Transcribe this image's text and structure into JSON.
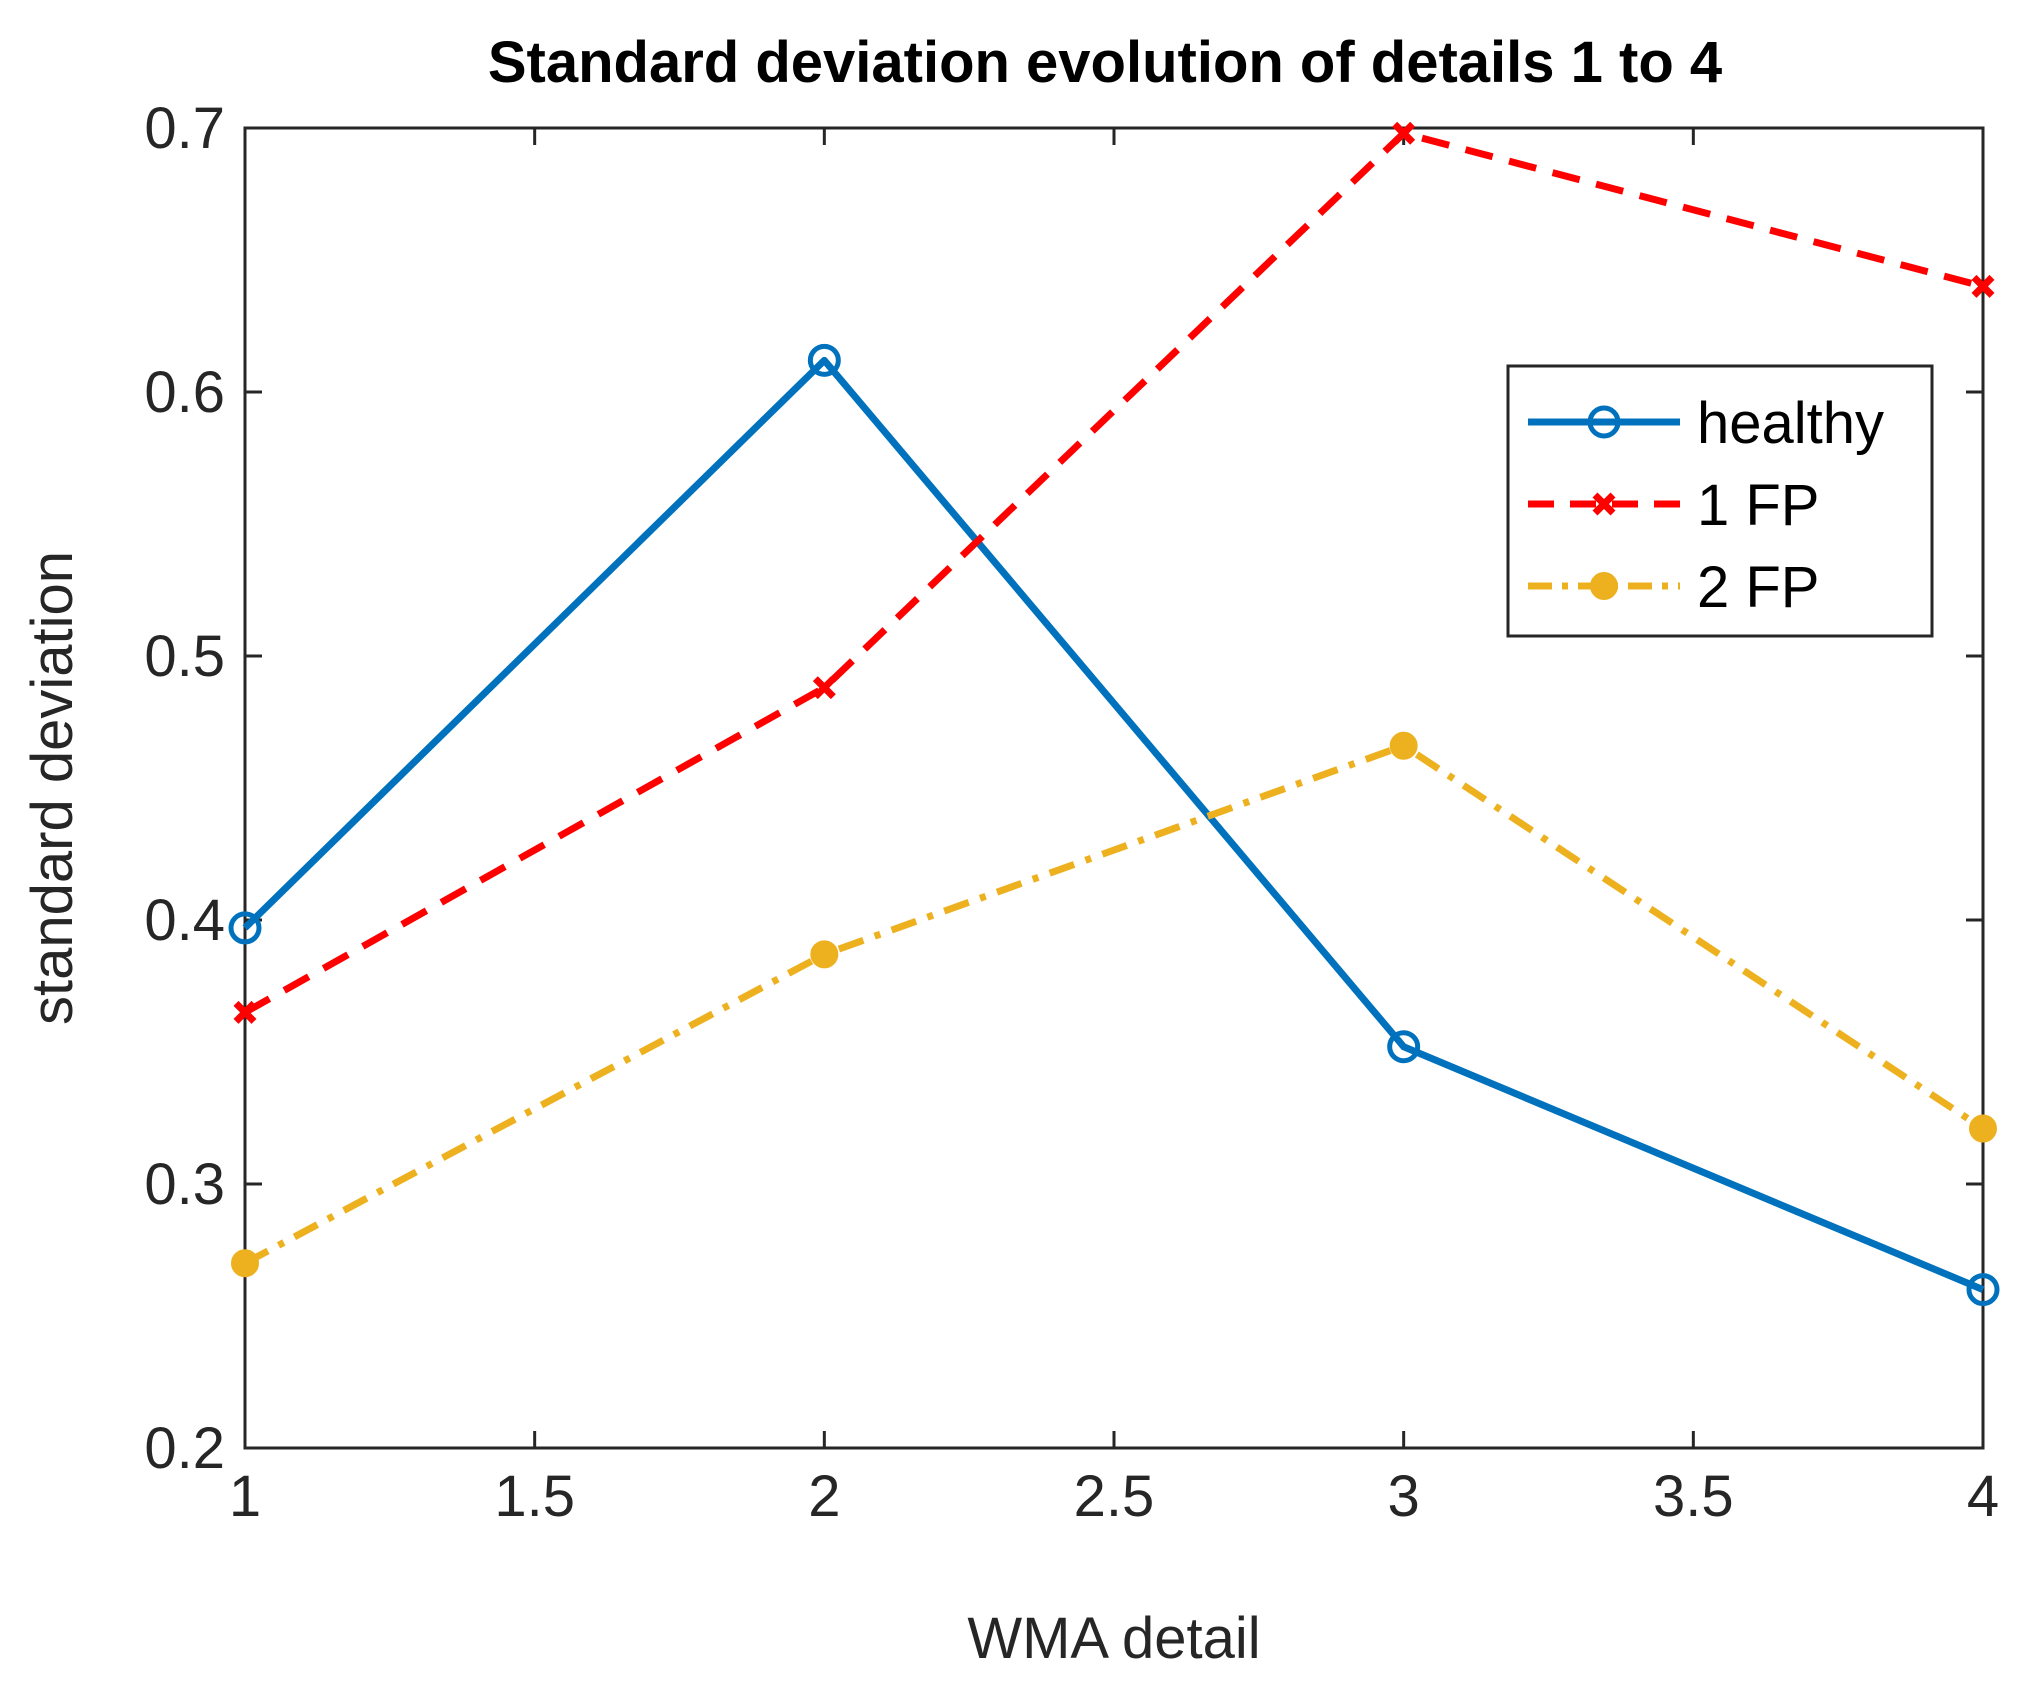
{
  "chart_data": {
    "type": "line",
    "title": "Standard deviation evolution of details 1 to 4",
    "xlabel": "WMA detail",
    "ylabel": "standard deviation",
    "xlim": [
      1,
      4
    ],
    "ylim": [
      0.2,
      0.7
    ],
    "xticks": [
      "1",
      "1.5",
      "2",
      "2.5",
      "3",
      "3.5",
      "4"
    ],
    "yticks": [
      "0.2",
      "0.3",
      "0.4",
      "0.5",
      "0.6",
      "0.7"
    ],
    "x": [
      1,
      2,
      3,
      4
    ],
    "grid": false,
    "legend_position": "top-right",
    "series": [
      {
        "name": "healthy",
        "values": [
          0.397,
          0.612,
          0.352,
          0.26
        ],
        "color": "#0072BD",
        "line_style": "solid",
        "marker": "circle"
      },
      {
        "name": "1 FP",
        "values": [
          0.365,
          0.488,
          0.698,
          0.64
        ],
        "color": "#FF0000",
        "line_style": "dashed",
        "marker": "x"
      },
      {
        "name": "2 FP",
        "values": [
          0.27,
          0.387,
          0.466,
          0.321
        ],
        "color": "#EDB120",
        "line_style": "dashdot",
        "marker": "dot"
      }
    ]
  }
}
